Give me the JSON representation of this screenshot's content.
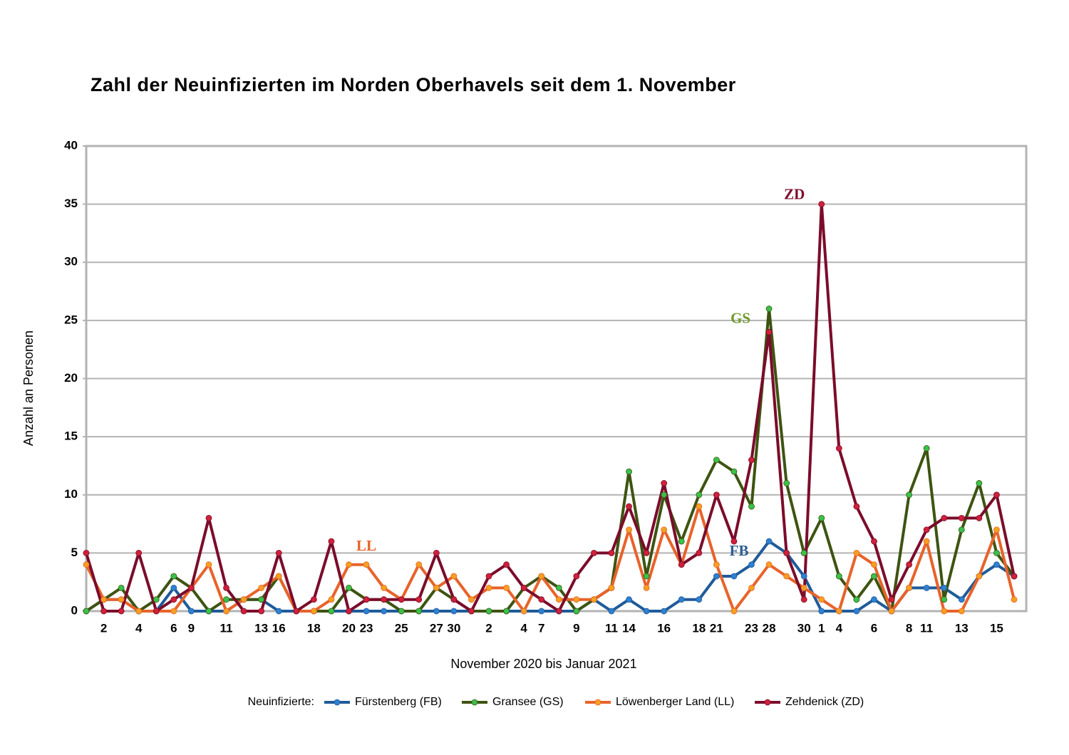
{
  "chart_data": {
    "type": "line",
    "title": "Zahl der Neuinfizierten im Norden Oberhavels seit dem 1. November",
    "x_label": "November 2020 bis Januar 2021",
    "y_label": "Anzahl an Personen",
    "legend_title": "Neuinfizierte:",
    "legend_position": "bottom",
    "grid": true,
    "ylim": [
      0,
      40
    ],
    "yticks": [
      0,
      5,
      10,
      15,
      20,
      25,
      30,
      35,
      40
    ],
    "categories": [
      null,
      "2",
      null,
      "4",
      null,
      "6",
      "9",
      null,
      "11",
      null,
      "13",
      "16",
      null,
      "18",
      null,
      "20",
      "23",
      null,
      "25",
      null,
      "27",
      "30",
      null,
      "2",
      null,
      "4",
      "7",
      null,
      "9",
      null,
      "11",
      "14",
      null,
      "16",
      null,
      "18",
      "21",
      null,
      "23",
      "28",
      null,
      "30",
      "1",
      "4",
      null,
      "6",
      null,
      "8",
      "11",
      null,
      "13",
      null,
      "15",
      null
    ],
    "series": [
      {
        "name": "Fürstenberg (FB)",
        "color": "#1f5b99",
        "marker_color": "#2f80d0",
        "values": [
          0,
          1,
          1,
          0,
          0,
          2,
          0,
          0,
          0,
          1,
          1,
          0,
          0,
          0,
          0,
          0,
          0,
          0,
          0,
          0,
          0,
          0,
          0,
          0,
          0,
          0,
          0,
          0,
          0,
          1,
          0,
          1,
          0,
          0,
          1,
          1,
          3,
          3,
          4,
          6,
          5,
          3,
          0,
          0,
          0,
          1,
          0,
          2,
          2,
          2,
          1,
          3,
          4,
          3
        ]
      },
      {
        "name": "Gransee (GS)",
        "color": "#3d5411",
        "marker_color": "#39c24a",
        "values": [
          0,
          1,
          2,
          0,
          1,
          3,
          2,
          0,
          1,
          1,
          1,
          3,
          0,
          0,
          0,
          2,
          1,
          1,
          0,
          0,
          2,
          1,
          0,
          0,
          0,
          2,
          3,
          2,
          0,
          1,
          2,
          12,
          3,
          10,
          6,
          10,
          13,
          12,
          9,
          26,
          11,
          5,
          8,
          3,
          1,
          3,
          0,
          10,
          14,
          1,
          7,
          11,
          5,
          3
        ]
      },
      {
        "name": "Löwenberger Land (LL)",
        "color": "#e8632a",
        "marker_color": "#f5a020",
        "values": [
          4,
          1,
          1,
          0,
          0,
          0,
          2,
          4,
          0,
          1,
          2,
          3,
          0,
          0,
          1,
          4,
          4,
          2,
          1,
          4,
          2,
          3,
          1,
          2,
          2,
          0,
          3,
          1,
          1,
          1,
          2,
          7,
          2,
          7,
          4,
          9,
          4,
          0,
          2,
          4,
          3,
          2,
          1,
          0,
          5,
          4,
          0,
          2,
          6,
          0,
          0,
          3,
          7,
          1
        ]
      },
      {
        "name": "Zehdenick (ZD)",
        "color": "#7b0c2b",
        "marker_color": "#d0203a",
        "values": [
          5,
          0,
          0,
          5,
          0,
          1,
          2,
          8,
          2,
          0,
          0,
          5,
          0,
          1,
          6,
          0,
          1,
          1,
          1,
          1,
          5,
          1,
          0,
          3,
          4,
          2,
          1,
          0,
          3,
          5,
          5,
          9,
          5,
          11,
          4,
          5,
          10,
          6,
          13,
          24,
          5,
          1,
          35,
          14,
          9,
          6,
          1,
          4,
          7,
          8,
          8,
          8,
          10,
          3
        ]
      }
    ],
    "annotations": [
      {
        "text": "ZD",
        "color": "#7b0c2b"
      },
      {
        "text": "GS",
        "color": "#6e9a2a"
      },
      {
        "text": "FB",
        "color": "#2a5d8f"
      },
      {
        "text": "LL",
        "color": "#e8632a"
      }
    ]
  }
}
